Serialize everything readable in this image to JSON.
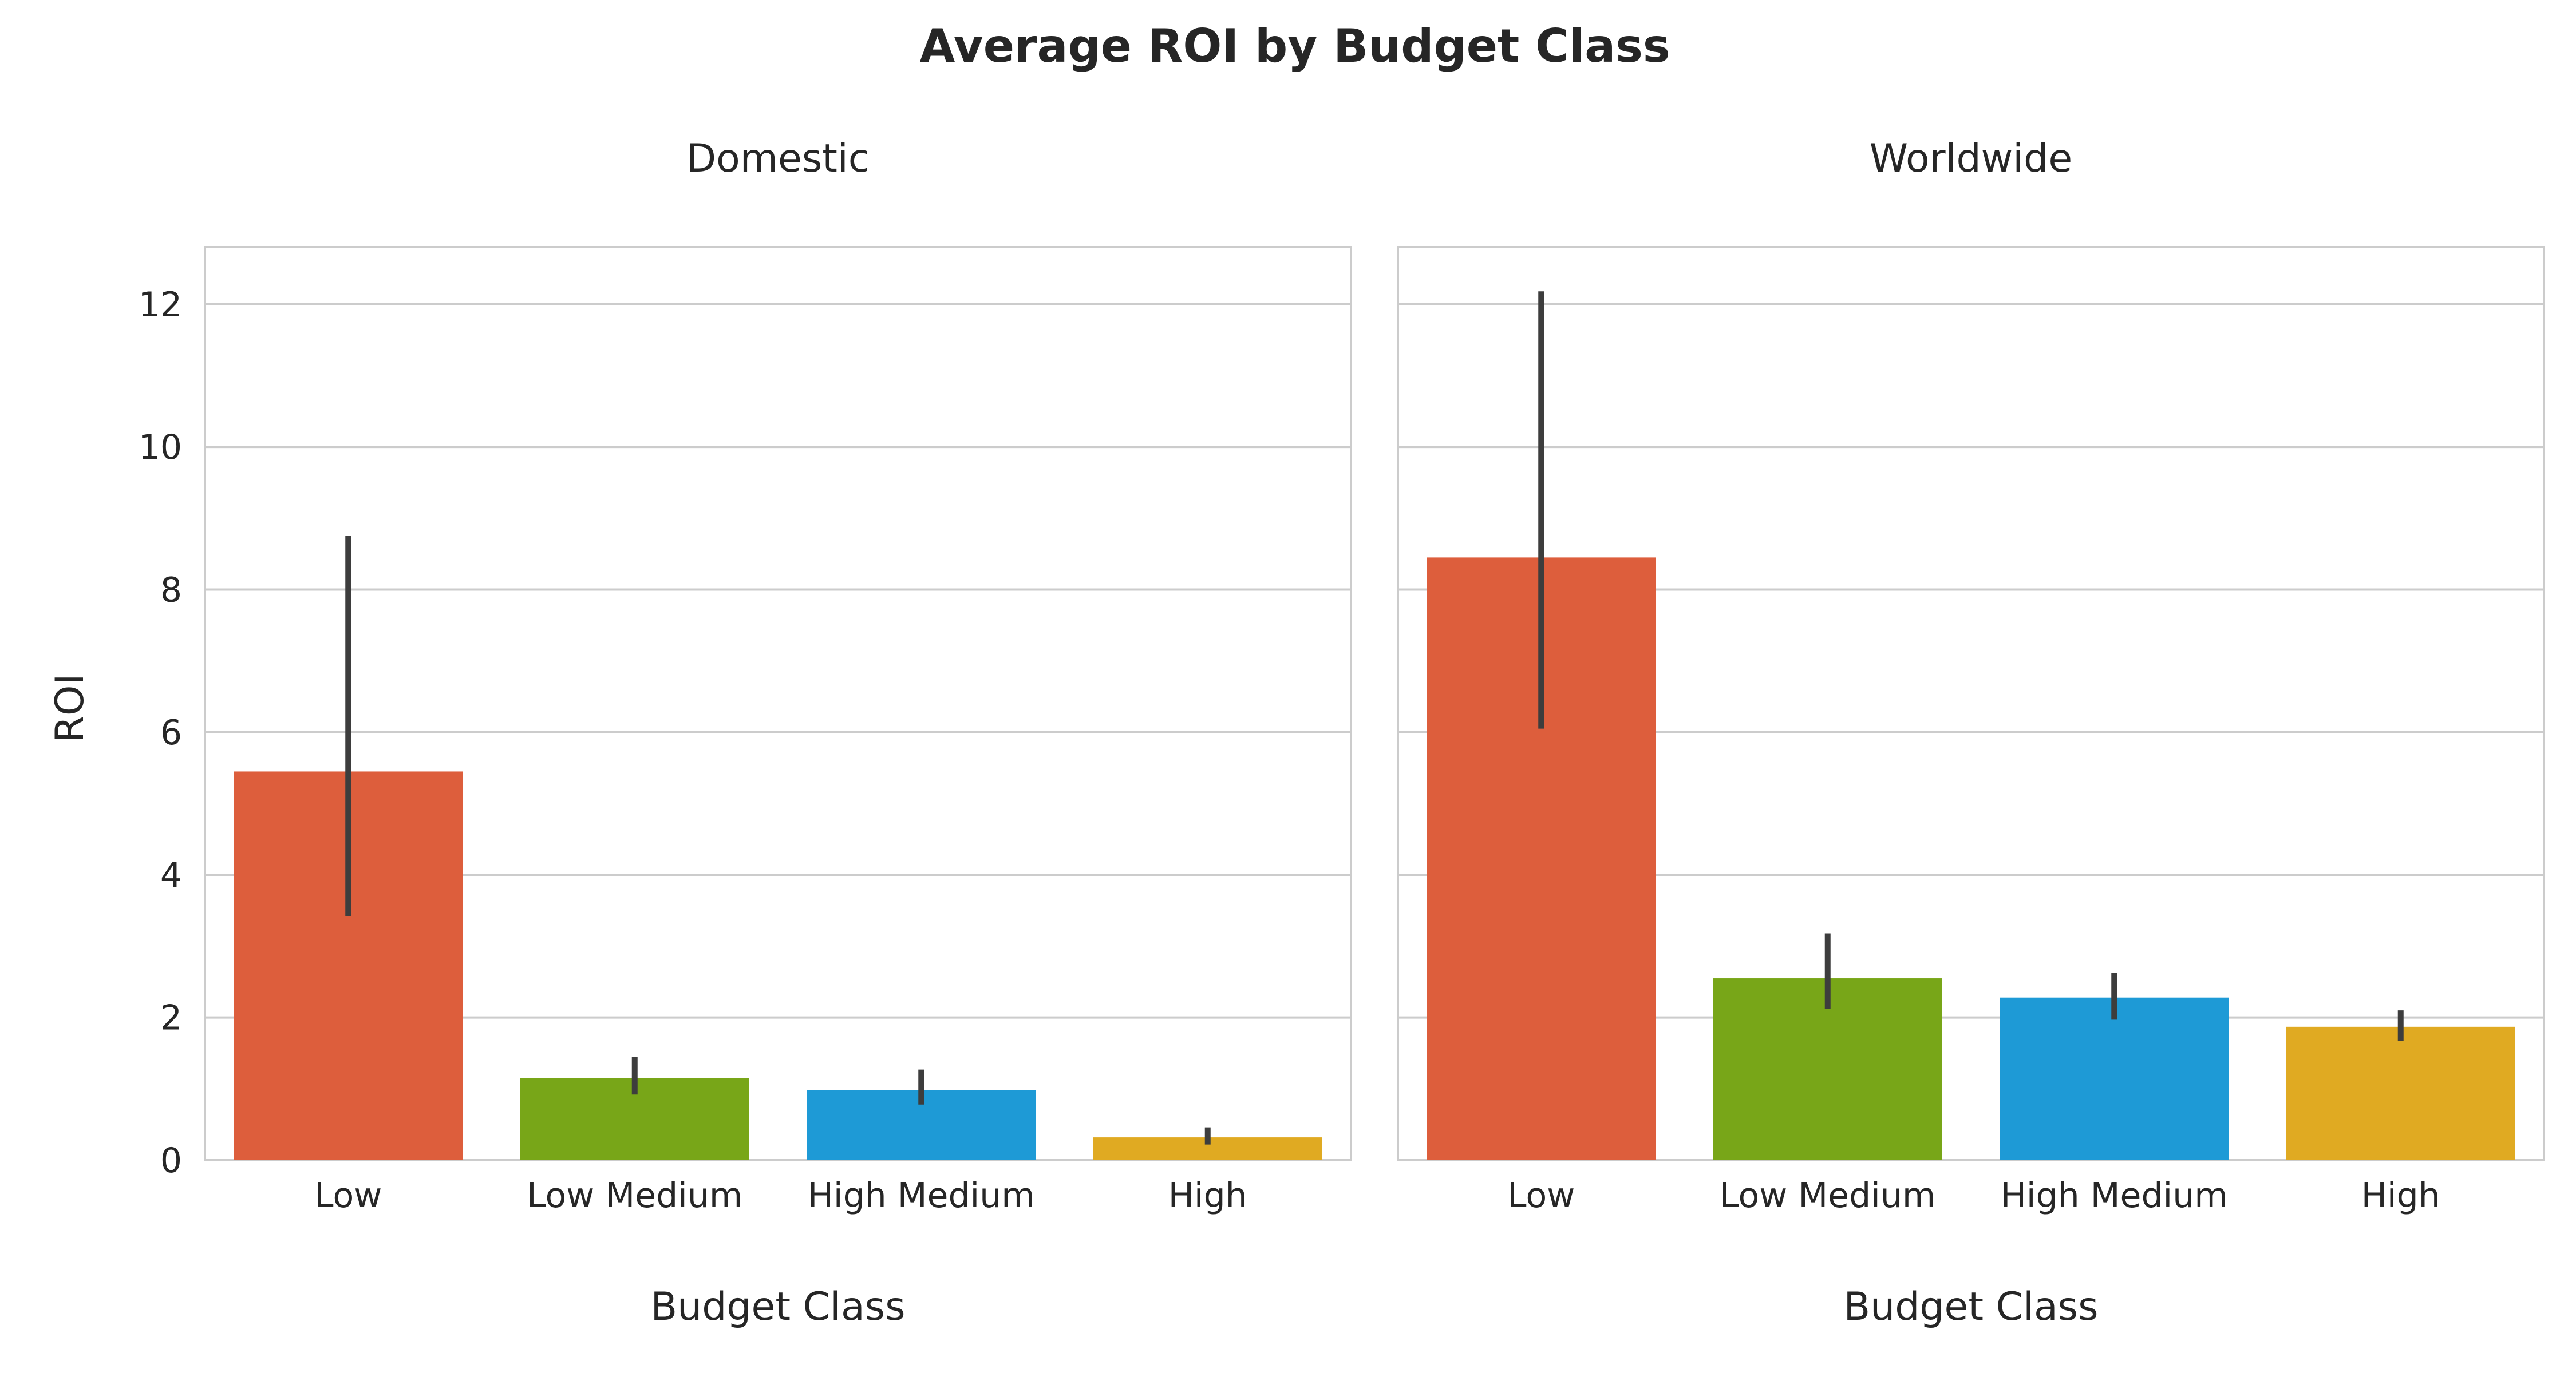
{
  "chart_data": {
    "type": "bar",
    "title": "Average ROI by Budget Class",
    "categories": [
      "Low",
      "Low Medium",
      "High Medium",
      "High"
    ],
    "colors": [
      "#dd5e3c",
      "#78a618",
      "#1e9ad6",
      "#e0aa22"
    ],
    "xlabel": "Budget Class",
    "ylabel": "ROI",
    "ylim": [
      0,
      12.8
    ],
    "yticks": [
      0,
      2,
      4,
      6,
      8,
      10,
      12
    ],
    "grid": true,
    "legend": "none",
    "panels": [
      {
        "title": "Domestic",
        "values": [
          5.45,
          1.15,
          0.98,
          0.32
        ],
        "ci_low": [
          3.42,
          0.92,
          0.78,
          0.22
        ],
        "ci_high": [
          8.75,
          1.45,
          1.27,
          0.46
        ]
      },
      {
        "title": "Worldwide",
        "values": [
          8.45,
          2.55,
          2.28,
          1.87
        ],
        "ci_low": [
          6.05,
          2.12,
          1.97,
          1.67
        ],
        "ci_high": [
          12.18,
          3.18,
          2.63,
          2.1
        ]
      }
    ]
  }
}
